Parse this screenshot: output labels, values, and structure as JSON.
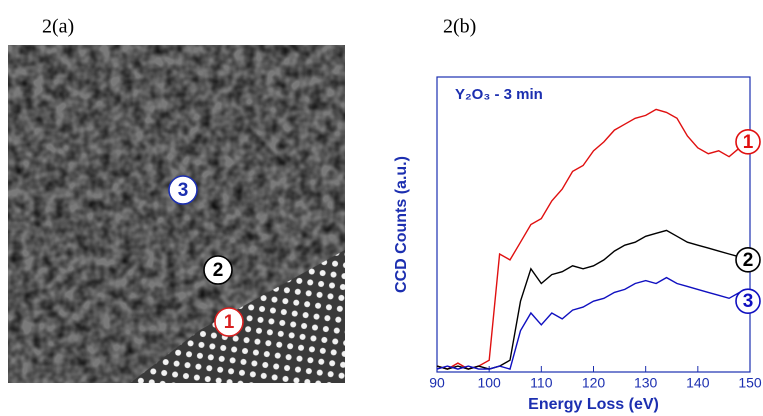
{
  "panel_labels": [
    "2(a)",
    "2(b)"
  ],
  "image_markers": [
    {
      "label": "3",
      "color": "#1c2fb0"
    },
    {
      "label": "2",
      "color": "#000000"
    },
    {
      "label": "1",
      "color": "#d92020"
    }
  ],
  "chart_data": {
    "type": "line",
    "annotation": "Y₂O₃ - 3 min",
    "x_label": "Energy Loss (eV)",
    "y_label": "CCD Counts (a.u.)",
    "xlim": [
      90,
      150
    ],
    "xticks": [
      90,
      100,
      110,
      120,
      130,
      140,
      150
    ],
    "ylim": [
      0,
      100
    ],
    "x": [
      90,
      92,
      94,
      96,
      98,
      100,
      102,
      104,
      106,
      108,
      110,
      112,
      114,
      116,
      118,
      120,
      122,
      124,
      126,
      128,
      130,
      132,
      134,
      136,
      138,
      140,
      142,
      144,
      146,
      148,
      150
    ],
    "series": [
      {
        "name": "1",
        "color": "#e01010",
        "values": [
          2,
          1,
          3,
          1,
          2,
          4,
          40,
          38,
          44,
          50,
          52,
          58,
          62,
          68,
          70,
          75,
          78,
          82,
          84,
          86,
          87,
          89,
          88,
          86,
          80,
          76,
          74,
          75,
          73,
          76,
          77
        ]
      },
      {
        "name": "2",
        "color": "#000000",
        "values": [
          2,
          1,
          2,
          1,
          2,
          1,
          2,
          4,
          24,
          35,
          30,
          33,
          34,
          36,
          35,
          36,
          38,
          41,
          43,
          44,
          46,
          47,
          48,
          46,
          44,
          43,
          42,
          41,
          40,
          39,
          37
        ]
      },
      {
        "name": "3",
        "color": "#1010c0",
        "values": [
          1,
          2,
          1,
          2,
          1,
          1,
          2,
          1,
          14,
          20,
          16,
          20,
          18,
          21,
          22,
          24,
          25,
          27,
          28,
          30,
          31,
          30,
          32,
          30,
          29,
          28,
          27,
          26,
          25,
          27,
          23
        ]
      }
    ]
  }
}
